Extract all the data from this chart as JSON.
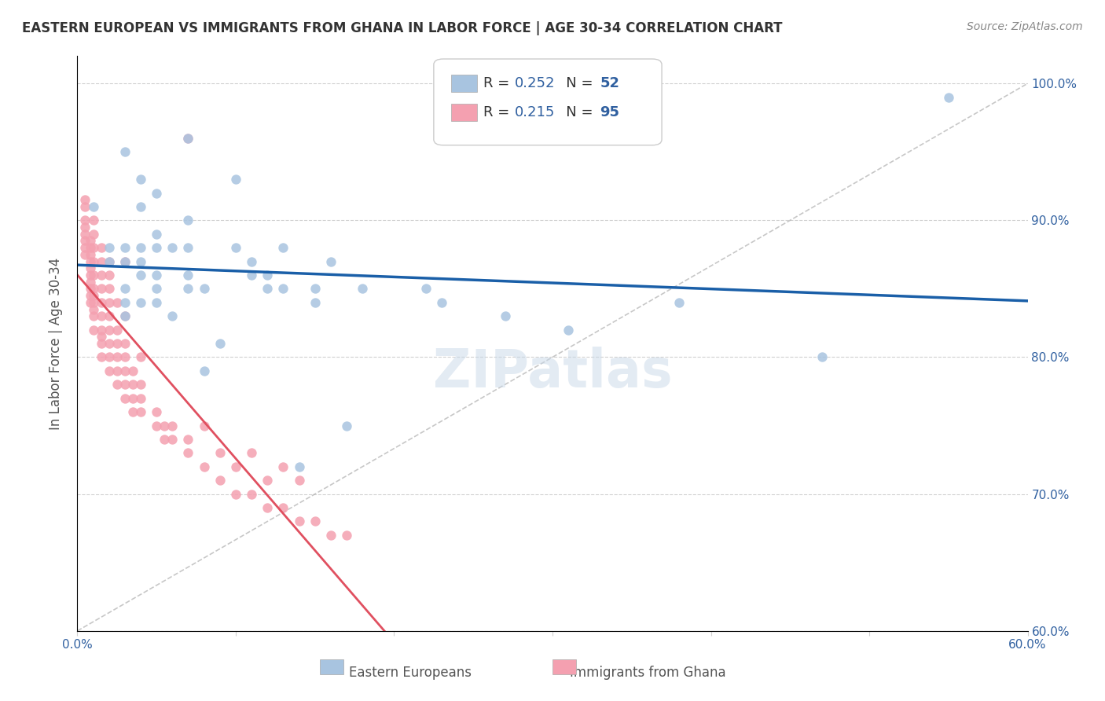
{
  "title": "EASTERN EUROPEAN VS IMMIGRANTS FROM GHANA IN LABOR FORCE | AGE 30-34 CORRELATION CHART",
  "source": "Source: ZipAtlas.com",
  "xlabel_bottom": "",
  "ylabel": "In Labor Force | Age 30-34",
  "xlim": [
    0.0,
    0.6
  ],
  "ylim": [
    0.6,
    1.02
  ],
  "x_ticks": [
    0.0,
    0.1,
    0.2,
    0.3,
    0.4,
    0.5,
    0.6
  ],
  "x_tick_labels": [
    "0.0%",
    "",
    "",
    "",
    "",
    "",
    "60.0%"
  ],
  "y_ticks": [
    0.6,
    0.7,
    0.8,
    0.9,
    1.0
  ],
  "y_tick_labels": [
    "60.0%",
    "70.0%",
    "80.0%",
    "90.0%",
    "100.0%"
  ],
  "blue_R": 0.252,
  "blue_N": 52,
  "pink_R": 0.215,
  "pink_N": 95,
  "blue_color": "#a8c4e0",
  "pink_color": "#f4a0b0",
  "blue_line_color": "#1a5fa8",
  "pink_line_color": "#e05060",
  "diagonal_color": "#c0c0c0",
  "watermark": "ZIPatlas",
  "blue_scatter_x": [
    0.01,
    0.02,
    0.02,
    0.03,
    0.03,
    0.03,
    0.03,
    0.03,
    0.03,
    0.04,
    0.04,
    0.04,
    0.04,
    0.04,
    0.04,
    0.05,
    0.05,
    0.05,
    0.05,
    0.05,
    0.05,
    0.06,
    0.06,
    0.07,
    0.07,
    0.07,
    0.07,
    0.07,
    0.08,
    0.08,
    0.09,
    0.1,
    0.1,
    0.11,
    0.11,
    0.12,
    0.12,
    0.13,
    0.13,
    0.14,
    0.15,
    0.15,
    0.16,
    0.17,
    0.18,
    0.22,
    0.23,
    0.27,
    0.31,
    0.38,
    0.47,
    0.55
  ],
  "blue_scatter_y": [
    0.91,
    0.87,
    0.88,
    0.83,
    0.84,
    0.85,
    0.87,
    0.88,
    0.95,
    0.84,
    0.86,
    0.87,
    0.88,
    0.91,
    0.93,
    0.84,
    0.85,
    0.86,
    0.88,
    0.89,
    0.92,
    0.83,
    0.88,
    0.85,
    0.86,
    0.88,
    0.9,
    0.96,
    0.79,
    0.85,
    0.81,
    0.88,
    0.93,
    0.86,
    0.87,
    0.85,
    0.86,
    0.88,
    0.85,
    0.72,
    0.84,
    0.85,
    0.87,
    0.75,
    0.85,
    0.85,
    0.84,
    0.83,
    0.82,
    0.84,
    0.8,
    0.99
  ],
  "pink_scatter_x": [
    0.005,
    0.005,
    0.005,
    0.005,
    0.005,
    0.005,
    0.005,
    0.005,
    0.008,
    0.008,
    0.008,
    0.008,
    0.008,
    0.008,
    0.008,
    0.008,
    0.008,
    0.008,
    0.01,
    0.01,
    0.01,
    0.01,
    0.01,
    0.01,
    0.01,
    0.01,
    0.01,
    0.01,
    0.01,
    0.015,
    0.015,
    0.015,
    0.015,
    0.015,
    0.015,
    0.015,
    0.015,
    0.015,
    0.015,
    0.02,
    0.02,
    0.02,
    0.02,
    0.02,
    0.02,
    0.02,
    0.02,
    0.02,
    0.025,
    0.025,
    0.025,
    0.025,
    0.025,
    0.025,
    0.03,
    0.03,
    0.03,
    0.03,
    0.03,
    0.03,
    0.03,
    0.035,
    0.035,
    0.035,
    0.035,
    0.04,
    0.04,
    0.04,
    0.04,
    0.05,
    0.05,
    0.055,
    0.055,
    0.06,
    0.06,
    0.07,
    0.07,
    0.07,
    0.08,
    0.08,
    0.09,
    0.09,
    0.1,
    0.1,
    0.11,
    0.11,
    0.12,
    0.12,
    0.13,
    0.13,
    0.14,
    0.14,
    0.15,
    0.16,
    0.17
  ],
  "pink_scatter_y": [
    0.875,
    0.88,
    0.885,
    0.89,
    0.895,
    0.9,
    0.91,
    0.915,
    0.84,
    0.845,
    0.85,
    0.855,
    0.86,
    0.865,
    0.87,
    0.875,
    0.88,
    0.885,
    0.82,
    0.83,
    0.835,
    0.84,
    0.845,
    0.85,
    0.86,
    0.87,
    0.88,
    0.89,
    0.9,
    0.8,
    0.81,
    0.815,
    0.82,
    0.83,
    0.84,
    0.85,
    0.86,
    0.87,
    0.88,
    0.79,
    0.8,
    0.81,
    0.82,
    0.83,
    0.84,
    0.85,
    0.86,
    0.87,
    0.78,
    0.79,
    0.8,
    0.81,
    0.82,
    0.84,
    0.77,
    0.78,
    0.79,
    0.8,
    0.81,
    0.83,
    0.87,
    0.76,
    0.77,
    0.78,
    0.79,
    0.76,
    0.77,
    0.78,
    0.8,
    0.75,
    0.76,
    0.74,
    0.75,
    0.74,
    0.75,
    0.73,
    0.74,
    0.96,
    0.72,
    0.75,
    0.71,
    0.73,
    0.7,
    0.72,
    0.7,
    0.73,
    0.69,
    0.71,
    0.69,
    0.72,
    0.68,
    0.71,
    0.68,
    0.67,
    0.67
  ]
}
